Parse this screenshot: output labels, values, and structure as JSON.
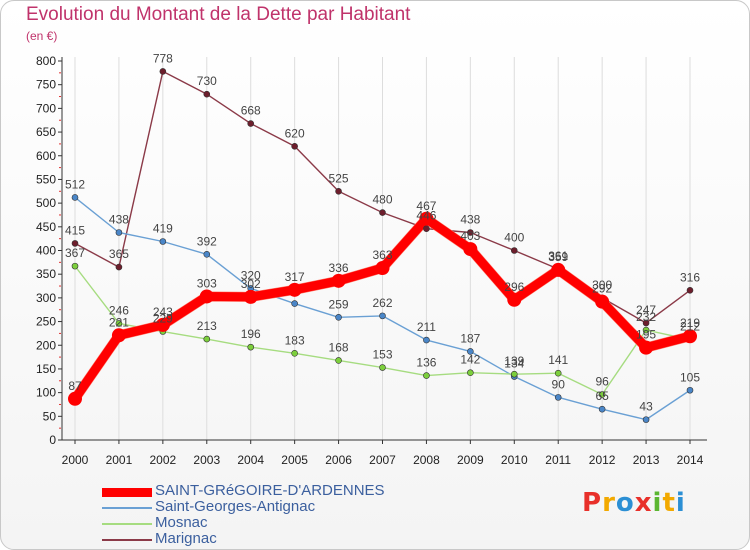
{
  "header": {
    "title": "Evolution du Montant de la Dette par Habitant",
    "subtitle": "(en €)"
  },
  "logo": {
    "letters": [
      "P",
      "r",
      "o",
      "x",
      "i",
      "t",
      "i"
    ],
    "colors": [
      "#e8302a",
      "#f2a900",
      "#2b8fd4",
      "#e8302a",
      "#5bb631",
      "#f2a900",
      "#2b8fd4"
    ]
  },
  "chart_data": {
    "type": "line",
    "title": "Evolution du Montant de la Dette par Habitant",
    "subtitle": "(en €)",
    "x": [
      "2000",
      "2001",
      "2002",
      "2003",
      "2004",
      "2005",
      "2006",
      "2007",
      "2008",
      "2009",
      "2010",
      "2011",
      "2012",
      "2013",
      "2014"
    ],
    "ylim": [
      0,
      800
    ],
    "yticks": [
      0,
      50,
      100,
      150,
      200,
      250,
      300,
      350,
      400,
      450,
      500,
      550,
      600,
      650,
      700,
      750,
      800
    ],
    "grid": "x",
    "legend_position": "bottom-left",
    "series": [
      {
        "name": "SAINT-GRéGOIRE-D'ARDENNES",
        "color": "#ff0000",
        "marker": "#ff0000",
        "width": 9,
        "values": [
          87,
          221,
          243,
          303,
          302,
          317,
          336,
          363,
          467,
          403,
          296,
          359,
          292,
          195,
          219
        ]
      },
      {
        "name": "Saint-Georges-Antignac",
        "color": "#6aa0d4",
        "marker": "#4a86c8",
        "width": 1.4,
        "values": [
          512,
          438,
          419,
          392,
          320,
          288,
          259,
          262,
          211,
          187,
          134,
          90,
          65,
          43,
          105
        ]
      },
      {
        "name": "Mosnac",
        "color": "#a6dc80",
        "marker": "#7ccf3c",
        "width": 1.4,
        "values": [
          367,
          246,
          229,
          213,
          196,
          183,
          168,
          153,
          136,
          142,
          139,
          141,
          96,
          232,
          212
        ]
      },
      {
        "name": "Marignac",
        "color": "#8b3a48",
        "marker": "#6d1e2c",
        "width": 1.4,
        "values": [
          415,
          365,
          778,
          730,
          668,
          620,
          525,
          480,
          446,
          438,
          400,
          361,
          300,
          247,
          316
        ]
      }
    ],
    "labels": [
      {
        "text": "87",
        "x": "2000",
        "y": 87
      },
      {
        "text": "221",
        "x": "2001",
        "y": 221
      },
      {
        "text": "243",
        "x": "2002",
        "y": 243
      },
      {
        "text": "303",
        "x": "2003",
        "y": 303
      },
      {
        "text": "302",
        "x": "2004",
        "y": 302
      },
      {
        "text": "317",
        "x": "2005",
        "y": 317
      },
      {
        "text": "336",
        "x": "2006",
        "y": 336
      },
      {
        "text": "363",
        "x": "2007",
        "y": 363
      },
      {
        "text": "467",
        "x": "2008",
        "y": 467
      },
      {
        "text": "403",
        "x": "2009",
        "y": 403
      },
      {
        "text": "296",
        "x": "2010",
        "y": 296
      },
      {
        "text": "359",
        "x": "2011",
        "y": 359
      },
      {
        "text": "292",
        "x": "2012",
        "y": 292
      },
      {
        "text": "195",
        "x": "2013",
        "y": 195
      },
      {
        "text": "219",
        "x": "2014",
        "y": 219
      },
      {
        "text": "512",
        "x": "2000",
        "y": 512
      },
      {
        "text": "438",
        "x": "2001",
        "y": 438
      },
      {
        "text": "419",
        "x": "2002",
        "y": 419
      },
      {
        "text": "392",
        "x": "2003",
        "y": 392
      },
      {
        "text": "320",
        "x": "2004",
        "y": 320
      },
      {
        "text": "259",
        "x": "2006",
        "y": 259
      },
      {
        "text": "262",
        "x": "2007",
        "y": 262
      },
      {
        "text": "211",
        "x": "2008",
        "y": 211
      },
      {
        "text": "187",
        "x": "2009",
        "y": 187
      },
      {
        "text": "134",
        "x": "2010",
        "y": 134
      },
      {
        "text": "90",
        "x": "2011",
        "y": 90
      },
      {
        "text": "65",
        "x": "2012",
        "y": 65
      },
      {
        "text": "43",
        "x": "2013",
        "y": 43
      },
      {
        "text": "105",
        "x": "2014",
        "y": 105
      },
      {
        "text": "367",
        "x": "2000",
        "y": 367
      },
      {
        "text": "246",
        "x": "2001",
        "y": 246
      },
      {
        "text": "229",
        "x": "2002",
        "y": 229
      },
      {
        "text": "213",
        "x": "2003",
        "y": 213
      },
      {
        "text": "196",
        "x": "2004",
        "y": 196
      },
      {
        "text": "183",
        "x": "2005",
        "y": 183
      },
      {
        "text": "168",
        "x": "2006",
        "y": 168
      },
      {
        "text": "153",
        "x": "2007",
        "y": 153
      },
      {
        "text": "136",
        "x": "2008",
        "y": 136
      },
      {
        "text": "142",
        "x": "2009",
        "y": 142
      },
      {
        "text": "139",
        "x": "2010",
        "y": 139
      },
      {
        "text": "141",
        "x": "2011",
        "y": 141
      },
      {
        "text": "96",
        "x": "2012",
        "y": 96
      },
      {
        "text": "232",
        "x": "2013",
        "y": 232
      },
      {
        "text": "212",
        "x": "2014",
        "y": 212
      },
      {
        "text": "415",
        "x": "2000",
        "y": 415
      },
      {
        "text": "365",
        "x": "2001",
        "y": 365
      },
      {
        "text": "778",
        "x": "2002",
        "y": 778
      },
      {
        "text": "730",
        "x": "2003",
        "y": 730
      },
      {
        "text": "668",
        "x": "2004",
        "y": 668
      },
      {
        "text": "620",
        "x": "2005",
        "y": 620
      },
      {
        "text": "525",
        "x": "2006",
        "y": 525
      },
      {
        "text": "480",
        "x": "2007",
        "y": 480
      },
      {
        "text": "446",
        "x": "2008",
        "y": 446
      },
      {
        "text": "438",
        "x": "2009",
        "y": 438
      },
      {
        "text": "400",
        "x": "2010",
        "y": 400
      },
      {
        "text": "361",
        "x": "2011",
        "y": 361
      },
      {
        "text": "300",
        "x": "2012",
        "y": 300
      },
      {
        "text": "247",
        "x": "2013",
        "y": 247
      },
      {
        "text": "316",
        "x": "2014",
        "y": 316
      }
    ]
  }
}
